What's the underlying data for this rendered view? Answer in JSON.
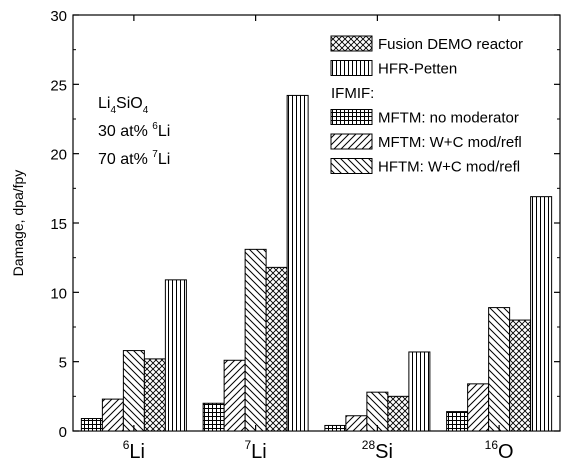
{
  "chart_data": {
    "type": "bar",
    "categories": [
      {
        "base": "Li",
        "sup": "6"
      },
      {
        "base": "Li",
        "sup": "7"
      },
      {
        "base": "Si",
        "sup": "28"
      },
      {
        "base": "O",
        "sup": "16"
      }
    ],
    "series": [
      {
        "name": "MFTM: no moderator",
        "pattern": "grid",
        "values": [
          0.9,
          2.0,
          0.4,
          1.4
        ]
      },
      {
        "name": "MFTM: W+C mod/refl",
        "pattern": "hatch-fwd",
        "values": [
          2.3,
          5.1,
          1.1,
          3.4
        ]
      },
      {
        "name": "HFTM: W+C mod/refl",
        "pattern": "hatch-back",
        "values": [
          5.8,
          13.1,
          2.8,
          8.9
        ]
      },
      {
        "name": "Fusion DEMO reactor",
        "pattern": "crosshatch",
        "values": [
          5.2,
          11.8,
          2.5,
          8.0
        ]
      },
      {
        "name": "HFR-Petten",
        "pattern": "vertical",
        "values": [
          10.9,
          24.2,
          5.7,
          16.9
        ]
      }
    ],
    "legend": {
      "items": [
        {
          "label": "Fusion DEMO reactor",
          "pattern": "crosshatch"
        },
        {
          "label": "HFR-Petten",
          "pattern": "vertical"
        },
        {
          "label": "IFMIF:",
          "pattern": null
        },
        {
          "label": "MFTM: no moderator",
          "pattern": "grid"
        },
        {
          "label": "MFTM: W+C mod/refl",
          "pattern": "hatch-fwd"
        },
        {
          "label": "HFTM: W+C mod/refl",
          "pattern": "hatch-back"
        }
      ],
      "position": "top-right"
    },
    "annotation": {
      "material": {
        "parts": [
          {
            "t": "Li"
          },
          {
            "t": "4",
            "sub": true
          },
          {
            "t": "SiO"
          },
          {
            "t": "4",
            "sub": true
          }
        ]
      },
      "line2": {
        "prefix": "30 at% ",
        "sup": "6",
        "suffix": "Li"
      },
      "line3": {
        "prefix": "70 at% ",
        "sup": "7",
        "suffix": "Li"
      }
    },
    "ylabel": "Damage, dpa/fpy",
    "ylim": [
      0,
      30
    ],
    "yticks": [
      0,
      5,
      10,
      15,
      20,
      25,
      30
    ],
    "grid": false
  }
}
